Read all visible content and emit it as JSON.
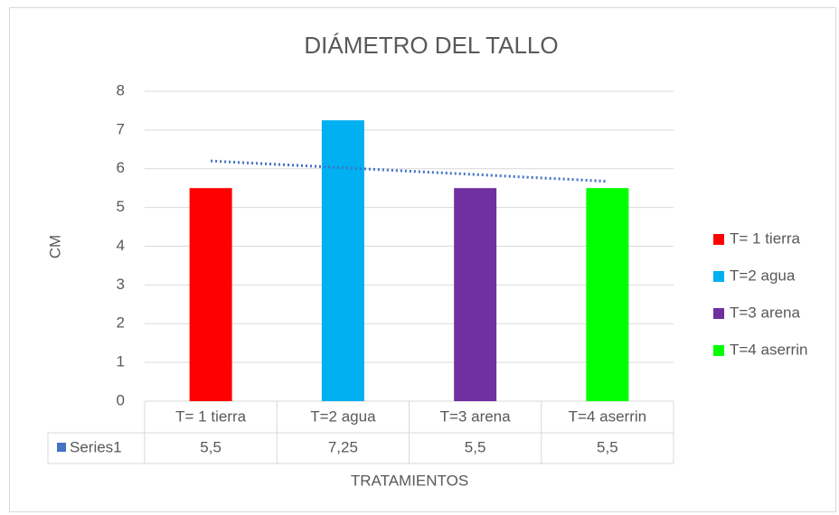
{
  "chart_data": {
    "type": "bar",
    "title": "DIÁMETRO DEL TALLO",
    "ylabel": "CM",
    "xlabel": "TRATAMIENTOS",
    "categories": [
      "T= 1 tierra",
      "T=2 agua",
      "T=3 arena",
      "T=4 aserrin"
    ],
    "values": [
      5.5,
      7.25,
      5.5,
      5.5
    ],
    "value_labels": [
      "5,5",
      "7,25",
      "5,5",
      "5,5"
    ],
    "colors": [
      "#ff0000",
      "#00b0f0",
      "#7030a0",
      "#00ff00"
    ],
    "series_name": "Series1",
    "series_color": "#4472c4",
    "trendline": {
      "values": [
        6.2,
        5.675
      ],
      "color": "#4472c4"
    },
    "ylim": [
      0,
      8
    ],
    "yticks": [
      0,
      1,
      2,
      3,
      4,
      5,
      6,
      7,
      8
    ],
    "grid": true,
    "legend": "right"
  }
}
